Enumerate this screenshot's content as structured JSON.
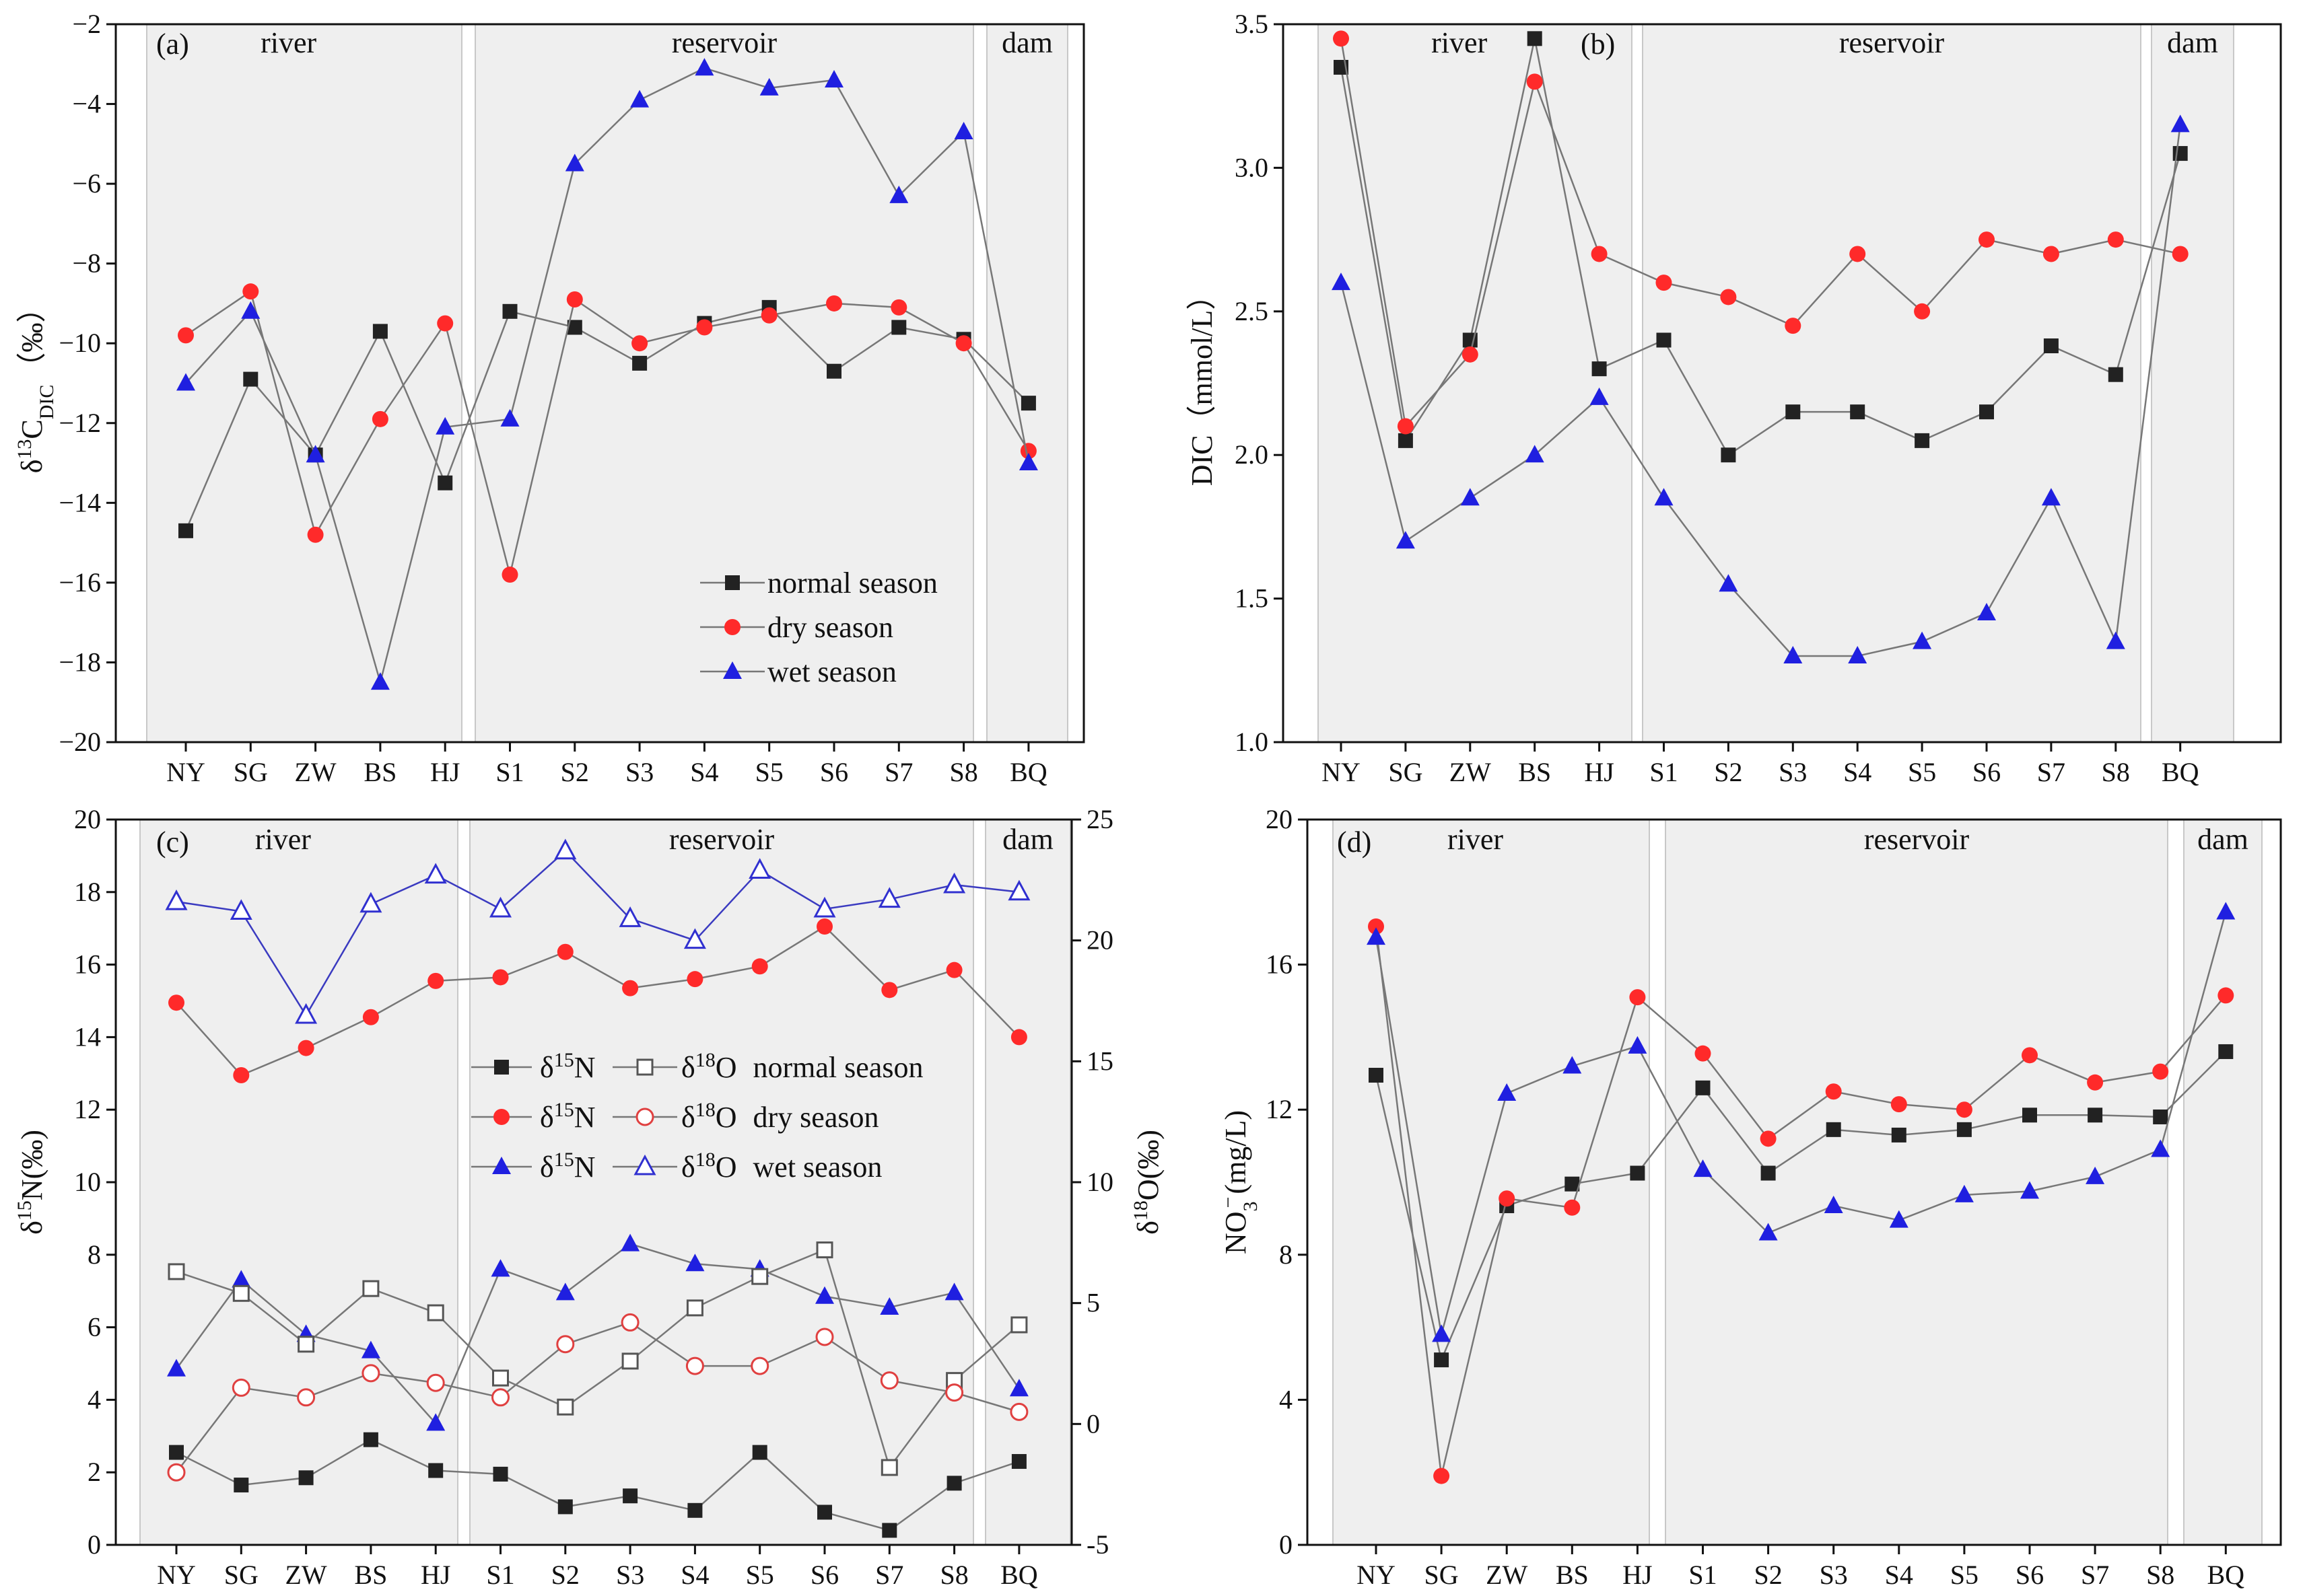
{
  "chart_data": [
    {
      "type": "line",
      "panel_label": "(a)",
      "ylabel_main": "δ",
      "ylabel_sup": "13",
      "ylabel_base": "C",
      "ylabel_sub": "DIC",
      "ylabel_unit": "（‰）",
      "categories": [
        "NY",
        "SG",
        "ZW",
        "BS",
        "HJ",
        "S1",
        "S2",
        "S3",
        "S4",
        "S5",
        "S6",
        "S7",
        "S8",
        "BQ"
      ],
      "ylim": [
        -20,
        -2
      ],
      "yticks": [
        -20,
        -18,
        -16,
        -14,
        -12,
        -10,
        -8,
        -6,
        -4,
        -2
      ],
      "ytick_labels": [
        "−20",
        "−18",
        "−16",
        "−14",
        "−12",
        "−10",
        "−8",
        "−6",
        "−4",
        "−2"
      ],
      "regions": [
        {
          "label": "river",
          "from": 0,
          "to": 4
        },
        {
          "label": "reservoir",
          "from": 5,
          "to": 12
        },
        {
          "label": "dam",
          "from": 13,
          "to": 13
        }
      ],
      "series": [
        {
          "name": "normal season",
          "marker": "square",
          "color": "#222222",
          "values": [
            -14.7,
            -10.9,
            -12.8,
            -9.7,
            -13.5,
            -9.2,
            -9.6,
            -10.5,
            -9.5,
            -9.1,
            -10.7,
            -9.6,
            -9.9,
            -11.5
          ]
        },
        {
          "name": "dry season",
          "marker": "circle",
          "color": "#ff2a2a",
          "values": [
            -9.8,
            -8.7,
            -14.8,
            -11.9,
            -9.5,
            -15.8,
            -8.9,
            -10.0,
            -9.6,
            -9.3,
            -9.0,
            -9.1,
            -10.0,
            -12.7
          ]
        },
        {
          "name": "wet season",
          "marker": "triangle",
          "color": "#1f1fe0",
          "values": [
            -11.0,
            -9.2,
            -12.8,
            -18.5,
            -12.1,
            -11.9,
            -5.5,
            -3.9,
            -3.1,
            -3.6,
            -3.4,
            -6.3,
            -4.7,
            -13.0
          ]
        }
      ]
    },
    {
      "type": "line",
      "panel_label": "(b)",
      "ylabel": "DIC（mmol/L）",
      "categories": [
        "NY",
        "SG",
        "ZW",
        "BS",
        "HJ",
        "S1",
        "S2",
        "S3",
        "S4",
        "S5",
        "S6",
        "S7",
        "S8",
        "BQ"
      ],
      "ylim": [
        1.0,
        3.5
      ],
      "yticks": [
        1.0,
        1.5,
        2.0,
        2.5,
        3.0,
        3.5
      ],
      "ytick_labels": [
        "1.0",
        "1.5",
        "2.0",
        "2.5",
        "3.0",
        "3.5"
      ],
      "regions": [
        {
          "label": "river",
          "from": 0,
          "to": 4
        },
        {
          "label": "reservoir",
          "from": 5,
          "to": 12
        },
        {
          "label": "dam",
          "from": 13,
          "to": 13
        }
      ],
      "series": [
        {
          "name": "normal season",
          "marker": "square",
          "color": "#222222",
          "values": [
            3.35,
            2.05,
            2.4,
            3.45,
            2.3,
            2.4,
            2.0,
            2.15,
            2.15,
            2.05,
            2.15,
            2.38,
            2.28,
            3.05
          ]
        },
        {
          "name": "dry season",
          "marker": "circle",
          "color": "#ff2a2a",
          "values": [
            3.45,
            2.1,
            2.35,
            3.3,
            2.7,
            2.6,
            2.55,
            2.45,
            2.7,
            2.5,
            2.75,
            2.7,
            2.75,
            2.7
          ]
        },
        {
          "name": "wet season",
          "marker": "triangle",
          "color": "#1f1fe0",
          "values": [
            2.6,
            1.7,
            1.85,
            2.0,
            2.2,
            1.85,
            1.55,
            1.3,
            1.3,
            1.35,
            1.45,
            1.85,
            1.35,
            3.15
          ]
        }
      ]
    },
    {
      "type": "line",
      "panel_label": "(c)",
      "ylabel_main": "δ",
      "ylabel_sup": "15",
      "ylabel_base": "N(‰)",
      "y2label_main": "δ",
      "y2label_sup": "18",
      "y2label_base": "O(‰)",
      "categories": [
        "NY",
        "SG",
        "ZW",
        "BS",
        "HJ",
        "S1",
        "S2",
        "S3",
        "S4",
        "S5",
        "S6",
        "S7",
        "S8",
        "BQ"
      ],
      "ylim": [
        0,
        20
      ],
      "yticks": [
        0,
        2,
        4,
        6,
        8,
        10,
        12,
        14,
        16,
        18,
        20
      ],
      "ytick_labels": [
        "0",
        "2",
        "4",
        "6",
        "8",
        "10",
        "12",
        "14",
        "16",
        "18",
        "20"
      ],
      "y2lim": [
        -5,
        25
      ],
      "y2ticks": [
        -5,
        0,
        5,
        10,
        15,
        20,
        25
      ],
      "y2tick_labels": [
        "-5",
        "0",
        "5",
        "10",
        "15",
        "20",
        "25"
      ],
      "regions": [
        {
          "label": "river",
          "from": 0,
          "to": 4
        },
        {
          "label": "reservoir",
          "from": 5,
          "to": 12
        },
        {
          "label": "dam",
          "from": 13,
          "to": 13
        }
      ],
      "legend": [
        {
          "n_main": "δ",
          "n_sup": "15",
          "n_base": "N",
          "o_main": "δ",
          "o_sup": "18",
          "o_base": "O",
          "season": "normal season"
        },
        {
          "n_main": "δ",
          "n_sup": "15",
          "n_base": "N",
          "o_main": "δ",
          "o_sup": "18",
          "o_base": "O",
          "season": "dry season"
        },
        {
          "n_main": "δ",
          "n_sup": "15",
          "n_base": "N",
          "o_main": "δ",
          "o_sup": "18",
          "o_base": "O",
          "season": "wet season"
        }
      ],
      "series": [
        {
          "name": "δ15N normal season",
          "axis": "left",
          "marker": "square",
          "filled": true,
          "color": "#222222",
          "values": [
            2.55,
            1.65,
            1.85,
            2.9,
            2.05,
            1.95,
            1.05,
            1.35,
            0.95,
            2.55,
            0.9,
            0.4,
            1.7,
            2.3
          ]
        },
        {
          "name": "δ15N dry season",
          "axis": "left",
          "marker": "circle",
          "filled": true,
          "color": "#ff2a2a",
          "values": [
            14.95,
            12.95,
            13.7,
            14.55,
            15.55,
            15.65,
            16.35,
            15.35,
            15.6,
            15.95,
            17.05,
            15.3,
            15.85,
            14.0
          ]
        },
        {
          "name": "δ15N wet season",
          "axis": "left",
          "marker": "triangle",
          "filled": true,
          "color": "#1f1fe0",
          "values": [
            4.85,
            7.3,
            5.8,
            5.35,
            3.35,
            7.6,
            6.95,
            8.3,
            7.75,
            7.6,
            6.85,
            6.55,
            6.95,
            4.3
          ]
        },
        {
          "name": "δ18O normal season",
          "axis": "right",
          "marker": "square",
          "filled": false,
          "color": "#555555",
          "values": [
            6.3,
            5.4,
            3.3,
            5.6,
            4.6,
            1.9,
            0.7,
            2.6,
            4.8,
            6.1,
            7.2,
            -1.8,
            1.8,
            4.1
          ]
        },
        {
          "name": "δ18O dry season",
          "axis": "right",
          "marker": "circle",
          "filled": false,
          "color": "#e04040",
          "values": [
            -2.0,
            1.5,
            1.1,
            2.1,
            1.7,
            1.1,
            3.3,
            4.2,
            2.4,
            2.4,
            3.6,
            1.8,
            1.3,
            0.5
          ]
        },
        {
          "name": "δ18O wet season",
          "axis": "right",
          "marker": "triangle",
          "filled": false,
          "color": "#3030d0",
          "values": [
            21.6,
            21.2,
            16.9,
            21.5,
            22.7,
            21.3,
            23.7,
            20.9,
            20.0,
            22.9,
            21.3,
            21.7,
            22.3,
            22.0
          ]
        }
      ]
    },
    {
      "type": "line",
      "panel_label": "(d)",
      "ylabel_main": "NO",
      "ylabel_sub": "3",
      "ylabel_sup": "−",
      "ylabel_base": "(mg/L)",
      "categories": [
        "NY",
        "SG",
        "ZW",
        "BS",
        "HJ",
        "S1",
        "S2",
        "S3",
        "S4",
        "S5",
        "S6",
        "S7",
        "S8",
        "BQ"
      ],
      "ylim": [
        0,
        20
      ],
      "yticks": [
        0,
        4,
        8,
        12,
        16,
        20
      ],
      "ytick_labels": [
        "0",
        "4",
        "8",
        "12",
        "16",
        "20"
      ],
      "regions": [
        {
          "label": "river",
          "from": 0,
          "to": 4
        },
        {
          "label": "reservoir",
          "from": 5,
          "to": 12
        },
        {
          "label": "dam",
          "from": 13,
          "to": 13
        }
      ],
      "series": [
        {
          "name": "normal season",
          "marker": "square",
          "color": "#222222",
          "values": [
            12.95,
            5.1,
            9.35,
            9.95,
            10.25,
            12.6,
            10.25,
            11.45,
            11.3,
            11.45,
            11.85,
            11.85,
            11.8,
            13.6
          ]
        },
        {
          "name": "dry season",
          "marker": "circle",
          "color": "#ff2a2a",
          "values": [
            17.05,
            1.9,
            9.55,
            9.3,
            15.1,
            13.55,
            11.2,
            12.5,
            12.15,
            12.0,
            13.5,
            12.75,
            13.05,
            15.15
          ]
        },
        {
          "name": "wet season",
          "marker": "triangle",
          "color": "#1f1fe0",
          "values": [
            16.75,
            5.8,
            12.45,
            13.2,
            13.75,
            10.35,
            8.6,
            9.35,
            8.95,
            9.65,
            9.75,
            10.15,
            10.9,
            17.45
          ]
        }
      ]
    }
  ]
}
